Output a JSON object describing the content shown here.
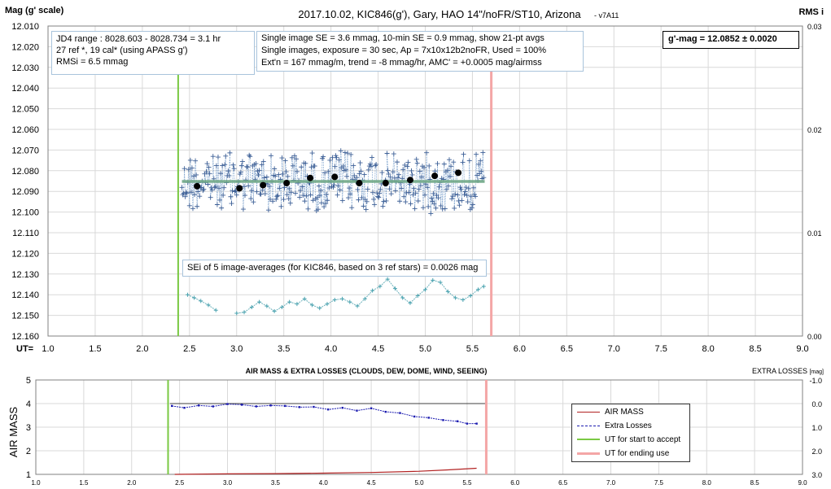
{
  "chart_data": [
    {
      "type": "scatter",
      "title": "2017.10.02,  KIC846(g'),  Gary, HAO 14\"/noFR/ST10, Arizona",
      "version": "- v7A11",
      "ylabel": "Mag (g' scale)",
      "y2label": "RMS i",
      "xlabel": "UT=",
      "xlim": [
        1.0,
        9.0
      ],
      "ylim": [
        12.01,
        12.16
      ],
      "y_inverted": true,
      "y2lim": [
        0.0,
        0.03
      ],
      "x_ticks": [
        "1.0",
        "1.5",
        "2.0",
        "2.5",
        "3.0",
        "3.5",
        "4.0",
        "4.5",
        "5.0",
        "5.5",
        "6.0",
        "6.5",
        "7.0",
        "7.5",
        "8.0",
        "8.5",
        "9.0"
      ],
      "y_ticks": [
        "12.010",
        "12.020",
        "12.030",
        "12.040",
        "12.050",
        "12.060",
        "12.070",
        "12.080",
        "12.090",
        "12.100",
        "12.110",
        "12.120",
        "12.130",
        "12.140",
        "12.150",
        "12.160"
      ],
      "y2_ticks": [
        "0.03",
        "0.02",
        "0.01",
        "0.00"
      ],
      "grid": true,
      "annotations": {
        "box1": [
          "JD4 range : 8028.603 - 8028.734 =  3.1  hr",
          "27 ref *, 19 cal* (using APASS g')",
          "RMSi = 6.5 mmag"
        ],
        "box2": [
          "Single image SE = 3.6 mmag, 10-min SE = 0.9 mmag, show 21-pt avgs",
          "Single images, exposure = 30 sec, Ap = 7x10x12b2noFR, Used = 100%",
          "Ext'n = 167 mmag/m, trend = -8 mmag/hr, AMC' = +0.0005 mag/airmss"
        ],
        "result": "g'-mag = 12.0852 ± 0.0020",
        "sei_note": "SEi of 5 image-averages (for KIC846, based on 3 ref stars) = 0.0026 mag"
      },
      "start_ut": 2.38,
      "end_ut": 5.7,
      "mean_mag": 12.0852,
      "fit_x": [
        2.42,
        5.63
      ],
      "series": [
        {
          "color": "#4a78b4",
          "avg_x": [
            2.58,
            3.03,
            3.28,
            3.53,
            3.78,
            4.04,
            4.3,
            4.58,
            4.84,
            5.1,
            5.35
          ],
          "avg_y": [
            12.0875,
            12.0885,
            12.087,
            12.086,
            12.0835,
            12.083,
            12.086,
            12.086,
            12.0845,
            12.0825,
            12.081
          ]
        },
        {
          "color": "#6fb3bd",
          "rms_x": [
            2.48,
            2.55,
            2.62,
            2.7,
            2.78,
            3.0,
            3.08,
            3.16,
            3.24,
            3.32,
            3.4,
            3.48,
            3.56,
            3.64,
            3.72,
            3.8,
            3.88,
            3.96,
            4.04,
            4.12,
            4.2,
            4.28,
            4.36,
            4.44,
            4.52,
            4.6,
            4.68,
            4.76,
            4.84,
            4.92,
            5.0,
            5.08,
            5.16,
            5.24,
            5.32,
            5.4,
            5.48,
            5.56,
            5.62
          ],
          "rms_y": [
            0.004,
            0.0037,
            0.0034,
            0.003,
            0.0025,
            0.0022,
            0.0023,
            0.0028,
            0.0033,
            0.0029,
            0.0024,
            0.0028,
            0.0033,
            0.0031,
            0.0036,
            0.003,
            0.0027,
            0.0031,
            0.0035,
            0.0036,
            0.0033,
            0.0029,
            0.0036,
            0.0044,
            0.0048,
            0.0055,
            0.0046,
            0.0037,
            0.0032,
            0.0039,
            0.0045,
            0.0054,
            0.0052,
            0.0043,
            0.0037,
            0.0035,
            0.0039,
            0.0045,
            0.0048
          ]
        }
      ]
    },
    {
      "type": "line",
      "title": "AIR MASS & EXTRA LOSSES (CLOUDS, DEW, DOME, WIND, SEEING)",
      "ylabel": "AIR MASS",
      "y2label": "EXTRA LOSSES",
      "y2unit": "[mag]",
      "xlim": [
        1.0,
        9.0
      ],
      "ylim": [
        1,
        5
      ],
      "y2lim": [
        -1.0,
        3.0
      ],
      "x_ticks": [
        "1.0",
        "1.5",
        "2.0",
        "2.5",
        "3.0",
        "3.5",
        "4.0",
        "4.5",
        "5.0",
        "5.5",
        "6.0",
        "6.5",
        "7.0",
        "7.5",
        "8.0",
        "8.5",
        "9.0"
      ],
      "y_ticks": [
        "5",
        "4",
        "3",
        "2",
        "1"
      ],
      "y2_ticks": [
        "-1.0",
        "0.0",
        "1.0",
        "2.0",
        "3.0"
      ],
      "legend": [
        "AIR MASS",
        "Extra Losses",
        "UT for start to accept",
        "UT for ending use"
      ],
      "legend_position": "right",
      "series": [
        {
          "name": "AIR MASS",
          "color": "#b22222",
          "x": [
            2.45,
            3.0,
            3.5,
            4.0,
            4.5,
            5.0,
            5.3,
            5.6
          ],
          "y": [
            1.0,
            1.02,
            1.03,
            1.05,
            1.08,
            1.13,
            1.19,
            1.26
          ]
        },
        {
          "name": "Extra Losses",
          "color": "#1a1ab0",
          "x": [
            2.42,
            2.55,
            2.7,
            2.85,
            3.0,
            3.15,
            3.3,
            3.45,
            3.6,
            3.75,
            3.9,
            4.05,
            4.2,
            4.35,
            4.5,
            4.65,
            4.8,
            4.95,
            5.1,
            5.25,
            5.4,
            5.5,
            5.6
          ],
          "y": [
            0.1,
            0.18,
            0.08,
            0.12,
            0.02,
            0.05,
            0.12,
            0.08,
            0.1,
            0.15,
            0.14,
            0.25,
            0.18,
            0.3,
            0.2,
            0.35,
            0.4,
            0.55,
            0.6,
            0.7,
            0.75,
            0.85,
            0.85
          ]
        }
      ]
    }
  ]
}
